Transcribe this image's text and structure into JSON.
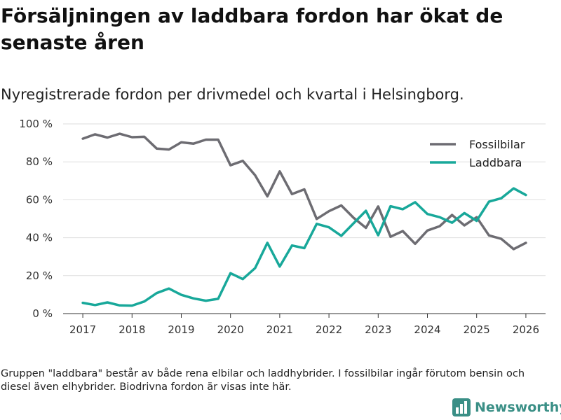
{
  "header": {
    "title": "Försäljningen av laddbara fordon har ökat de senaste åren",
    "subtitle": "Nyregistrerade fordon per drivmedel och kvartal i Helsingborg."
  },
  "footnote": "Gruppen \"laddbara\" består av både rena elbilar och laddhybrider. I fossilbilar ingår förutom bensin och diesel även elhybrider. Biodrivna fordon är visas inte här.",
  "logo": {
    "text": "Newsworthy",
    "icon": "bar-chart-icon",
    "color": "#3a8f86"
  },
  "chart_data": {
    "type": "line",
    "title": "Försäljningen av laddbara fordon har ökat de senaste åren",
    "subtitle": "Nyregistrerade fordon per drivmedel och kvartal i Helsingborg.",
    "xlabel": "",
    "ylabel": "",
    "x": [
      2017,
      2017.25,
      2017.5,
      2017.75,
      2018,
      2018.25,
      2018.5,
      2018.75,
      2019,
      2019.25,
      2019.5,
      2019.75,
      2020,
      2020.25,
      2020.5,
      2020.75,
      2021,
      2021.25,
      2021.5,
      2021.75,
      2022,
      2022.25,
      2022.5,
      2022.75,
      2023,
      2023.25,
      2023.5,
      2023.75,
      2024,
      2024.25,
      2024.5,
      2024.75,
      2025,
      2025.25,
      2025.5,
      2025.75,
      2026
    ],
    "xlim": [
      2016.6,
      2026.4
    ],
    "ylim": [
      0,
      100
    ],
    "x_ticks": [
      2017,
      2018,
      2019,
      2020,
      2021,
      2022,
      2023,
      2024,
      2025,
      2026
    ],
    "x_tick_labels": [
      "2017",
      "2018",
      "2019",
      "2020",
      "2021",
      "2022",
      "2023",
      "2024",
      "2025",
      "2026"
    ],
    "y_ticks": [
      0,
      20,
      40,
      60,
      80,
      100
    ],
    "y_tick_labels": [
      "0 %",
      "20 %",
      "40 %",
      "60 %",
      "80 %",
      "100 %"
    ],
    "grid": true,
    "legend_position": "top-right",
    "series": [
      {
        "name": "Fossilbilar",
        "color": "#6d6c72",
        "values": [
          92.2,
          94.5,
          92.8,
          94.8,
          93,
          93.2,
          87,
          86.5,
          90.3,
          89.6,
          91.7,
          91.7,
          78.2,
          80.5,
          72.9,
          61.8,
          75,
          63,
          65.5,
          49.9,
          54,
          57,
          50.5,
          45.2,
          56.5,
          40.5,
          43.5,
          36.8,
          43.8,
          46.1,
          52,
          46.5,
          50.8,
          41.2,
          39.4,
          34,
          37.3
        ]
      },
      {
        "name": "Laddbara",
        "color": "#18a89a",
        "values": [
          5.7,
          4.5,
          5.9,
          4.3,
          4.2,
          6.4,
          10.8,
          13.2,
          9.9,
          8,
          6.8,
          7.8,
          21.3,
          18.2,
          24,
          37.3,
          24.8,
          35.9,
          34.5,
          47.3,
          45.5,
          41,
          47.6,
          54.2,
          41.3,
          56.6,
          55,
          58.7,
          52.5,
          50.8,
          47.9,
          53,
          48.9,
          59,
          60.8,
          66,
          62.5
        ]
      }
    ]
  }
}
